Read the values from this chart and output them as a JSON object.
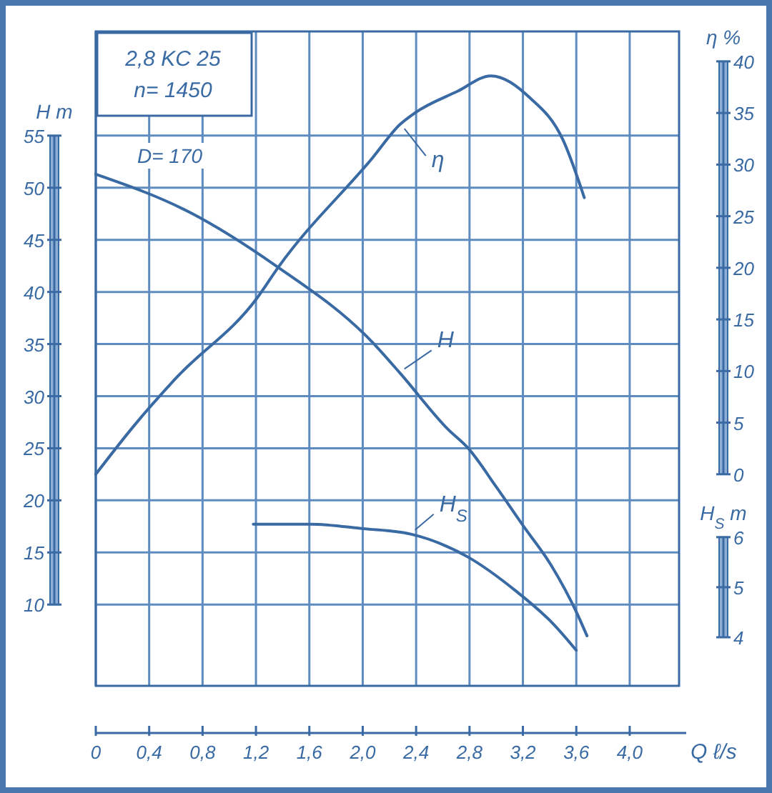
{
  "chart_data": {
    "type": "line",
    "xlabel": "Q  ℓ/s",
    "ylabel": "H m",
    "y2label": "η %",
    "y3label": "H$_{S}$ m",
    "annotations": [
      "2,8 KC 25",
      "n= 1450",
      "D= 170"
    ],
    "xlim": [
      0,
      4.37
    ],
    "xticks": [
      {
        "value": 0,
        "label": "0"
      },
      {
        "value": 0.4,
        "label": "0,4"
      },
      {
        "value": 0.8,
        "label": "0,8"
      },
      {
        "value": 1.2,
        "label": "1,2"
      },
      {
        "value": 1.6,
        "label": "1,6"
      },
      {
        "value": 2.0,
        "label": "2,0"
      },
      {
        "value": 2.4,
        "label": "2,4"
      },
      {
        "value": 2.8,
        "label": "2,8"
      },
      {
        "value": 3.2,
        "label": "3,2"
      },
      {
        "value": 3.6,
        "label": "3,6"
      },
      {
        "value": 4.0,
        "label": "4,0"
      }
    ],
    "ylim": [
      2.2,
      65
    ],
    "yticks": [
      10,
      15,
      20,
      25,
      30,
      35,
      40,
      45,
      50,
      55
    ],
    "y2lim": [
      -20.5,
      42.9
    ],
    "y2ticks": [
      0,
      5,
      10,
      15,
      20,
      25,
      30,
      35,
      40
    ],
    "y3lim": [
      3.03,
      16.1
    ],
    "y3ticks": [
      4,
      5,
      6
    ],
    "grid": true,
    "marker": "none",
    "line_style": "solid",
    "series": [
      {
        "name": "H",
        "color": "#3a6aa3",
        "axis": "y",
        "x": [
          0,
          0.71,
          1.35,
          2.07,
          2.28,
          2.64,
          2.79,
          3.0,
          3.2,
          3.41,
          3.6,
          3.68
        ],
        "values": [
          51.3,
          47.6,
          42.5,
          35.2,
          32.2,
          26.8,
          25,
          21.3,
          17.6,
          13.8,
          9.3,
          7.0
        ]
      },
      {
        "name": "η",
        "color": "#3a6aa3",
        "axis": "y2",
        "x": [
          0,
          0.28,
          0.6,
          1.21,
          1.37,
          2.07,
          2.28,
          2.39,
          2.71,
          2.96,
          3.25,
          3.5,
          3.66
        ],
        "values": [
          0,
          4.6,
          9.3,
          17.1,
          20.1,
          30.6,
          33.9,
          35,
          37.1,
          38.6,
          36.5,
          32.4,
          26.8
        ]
      },
      {
        "name": "H$_{S}$",
        "color": "#3a6aa3",
        "axis": "y3",
        "x": [
          1.18,
          1.61,
          2.0,
          2.36,
          2.79,
          3.14,
          3.43,
          3.6
        ],
        "values": [
          6.26,
          6.26,
          6.17,
          6.06,
          5.6,
          4.94,
          4.26,
          3.74
        ]
      }
    ]
  }
}
